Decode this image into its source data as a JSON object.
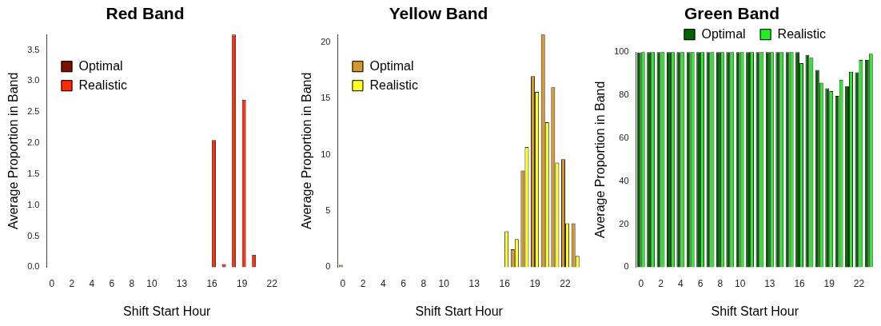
{
  "chart_data": [
    {
      "type": "bar",
      "title": "Red Band",
      "xlabel": "Shift Start Hour",
      "ylabel": "Average Proportion in Band",
      "categories": [
        "0",
        null,
        "2",
        null,
        "4",
        null,
        "6",
        null,
        "8",
        null,
        "10",
        null,
        null,
        "13",
        null,
        null,
        "16",
        null,
        null,
        "19",
        null,
        null,
        "22",
        null
      ],
      "series": [
        {
          "name": "Optimal",
          "color": "#7f1000",
          "values": [
            0,
            0,
            0,
            0,
            0,
            0,
            0,
            0,
            0,
            0,
            0,
            0,
            0,
            0,
            0,
            0,
            0,
            0,
            0,
            0,
            0,
            0,
            0,
            0
          ]
        },
        {
          "name": "Realistic",
          "color": "#ff2a00",
          "values": [
            0,
            0,
            0,
            0,
            0,
            0,
            0,
            0,
            0,
            0,
            0,
            0,
            0,
            0,
            0,
            0,
            2.05,
            0.05,
            3.75,
            2.7,
            0.2,
            0,
            0,
            0
          ]
        }
      ],
      "ylim": [
        0,
        3.75
      ],
      "yticks": [
        {
          "value": 0,
          "label": "0.0"
        },
        0.5,
        {
          "value": 1,
          "label": "1.0"
        },
        1.5,
        {
          "value": 2,
          "label": "2.0"
        },
        2.5,
        {
          "value": 3,
          "label": "3.0"
        },
        3.5
      ],
      "legend": "top left"
    },
    {
      "type": "bar",
      "title": "Yellow Band",
      "xlabel": "Shift Start Hour",
      "ylabel": "Average Proportion in Band",
      "categories": [
        "0",
        null,
        "2",
        null,
        "4",
        null,
        "6",
        null,
        "8",
        null,
        "10",
        null,
        null,
        "13",
        null,
        null,
        "16",
        null,
        null,
        "19",
        null,
        null,
        "22",
        null
      ],
      "series": [
        {
          "name": "Optimal",
          "color": "#d4982a",
          "values": [
            0.2,
            0,
            0,
            0,
            0,
            0,
            0,
            0,
            0,
            0,
            0,
            0,
            0,
            0,
            0,
            0,
            0,
            1.6,
            8.6,
            17.0,
            20.7,
            16.0,
            9.6,
            3.9
          ]
        },
        {
          "name": "Realistic",
          "color": "#ffff22",
          "values": [
            0,
            0,
            0,
            0,
            0,
            0,
            0,
            0,
            0,
            0,
            0,
            0,
            0,
            0,
            0,
            0,
            3.2,
            2.5,
            10.7,
            15.6,
            12.9,
            9.3,
            3.9,
            1.0
          ]
        }
      ],
      "ylim": [
        0,
        20.7
      ],
      "yticks": [
        0,
        5,
        10,
        15,
        20
      ],
      "legend": "top left"
    },
    {
      "type": "bar",
      "title": "Green Band",
      "xlabel": "Shift Start Hour",
      "ylabel": "Average Proportion in Band",
      "categories": [
        "0",
        null,
        "2",
        null,
        "4",
        null,
        "6",
        null,
        "8",
        null,
        "10",
        null,
        null,
        "13",
        null,
        null,
        "16",
        null,
        null,
        "19",
        null,
        null,
        "22",
        null
      ],
      "series": [
        {
          "name": "Optimal",
          "color": "#006400",
          "values": [
            99.8,
            100,
            100,
            100,
            100,
            100,
            100,
            100,
            100,
            100,
            100,
            100,
            100,
            100,
            100,
            100,
            100,
            98.7,
            91.7,
            83.2,
            79.6,
            84.2,
            90.6,
            96.4
          ]
        },
        {
          "name": "Realistic",
          "color": "#22ee22",
          "values": [
            100,
            100,
            100,
            100,
            100,
            100,
            100,
            100,
            100,
            100,
            100,
            100,
            100,
            100,
            100,
            100,
            94.9,
            97.4,
            85.8,
            81.9,
            87.2,
            90.9,
            96.4,
            99.2
          ]
        }
      ],
      "ylim": [
        0,
        100
      ],
      "yticks": [
        0,
        20,
        40,
        60,
        80,
        100
      ],
      "legend": "top"
    }
  ]
}
